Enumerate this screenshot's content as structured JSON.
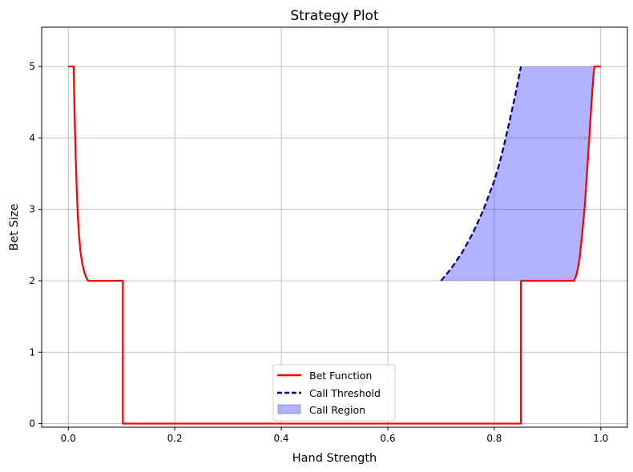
{
  "chart_data": {
    "type": "line",
    "title": "Strategy Plot",
    "xlabel": "Hand Strength",
    "ylabel": "Bet Size",
    "xlim": [
      -0.05,
      1.05
    ],
    "ylim": [
      -0.05,
      5.55
    ],
    "xticks": [
      0.0,
      0.2,
      0.4,
      0.6,
      0.8,
      1.0
    ],
    "xtick_labels": [
      "0.0",
      "0.2",
      "0.4",
      "0.6",
      "0.8",
      "1.0"
    ],
    "yticks": [
      0,
      1,
      2,
      3,
      4,
      5
    ],
    "ytick_labels": [
      "0",
      "1",
      "2",
      "3",
      "4",
      "5"
    ],
    "grid": true,
    "legend_position": "bottom-center",
    "series": [
      {
        "name": "Bet Function",
        "style": "solid",
        "color": "#ff0000",
        "x": [
          0.0,
          0.01,
          0.012,
          0.014,
          0.016,
          0.018,
          0.02,
          0.023,
          0.026,
          0.03,
          0.034,
          0.037,
          0.1025,
          0.1025,
          0.85,
          0.85,
          0.95,
          0.955,
          0.96,
          0.965,
          0.97,
          0.974,
          0.978,
          0.981,
          0.984,
          0.986,
          0.988,
          1.0
        ],
        "y": [
          5.0,
          5.0,
          4.3,
          3.7,
          3.25,
          2.9,
          2.65,
          2.4,
          2.25,
          2.12,
          2.04,
          2.0,
          2.0,
          0.0,
          0.0,
          2.0,
          2.0,
          2.1,
          2.3,
          2.65,
          3.05,
          3.5,
          3.95,
          4.3,
          4.65,
          4.85,
          5.0,
          5.0
        ]
      },
      {
        "name": "Call Threshold",
        "style": "dashed",
        "color": "#00008b",
        "x": [
          0.7,
          0.72,
          0.74,
          0.76,
          0.78,
          0.8,
          0.81,
          0.82,
          0.83,
          0.84,
          0.85
        ],
        "y": [
          2.0,
          2.18,
          2.4,
          2.67,
          3.0,
          3.4,
          3.65,
          3.95,
          4.28,
          4.62,
          5.0
        ]
      }
    ],
    "fill_region": {
      "name": "Call Region",
      "color": "#0000ff",
      "alpha": 0.3,
      "description_points_upper_x": [
        0.7,
        0.72,
        0.74,
        0.76,
        0.78,
        0.8,
        0.81,
        0.82,
        0.83,
        0.84,
        0.85,
        0.988,
        1.0
      ],
      "description_points_upper_y": [
        2.0,
        2.18,
        2.4,
        2.67,
        3.0,
        3.4,
        3.65,
        3.95,
        4.28,
        4.62,
        5.0,
        5.0,
        5.0
      ],
      "lower_boundary_x": [
        1.0,
        0.988,
        0.986,
        0.984,
        0.981,
        0.978,
        0.974,
        0.97,
        0.965,
        0.96,
        0.955,
        0.95,
        0.7
      ],
      "lower_boundary_y": [
        5.0,
        5.0,
        4.85,
        4.65,
        4.3,
        3.95,
        3.5,
        3.05,
        2.65,
        2.3,
        2.1,
        2.0,
        2.0
      ]
    },
    "legend": [
      "Bet Function",
      "Call Threshold",
      "Call Region"
    ]
  }
}
